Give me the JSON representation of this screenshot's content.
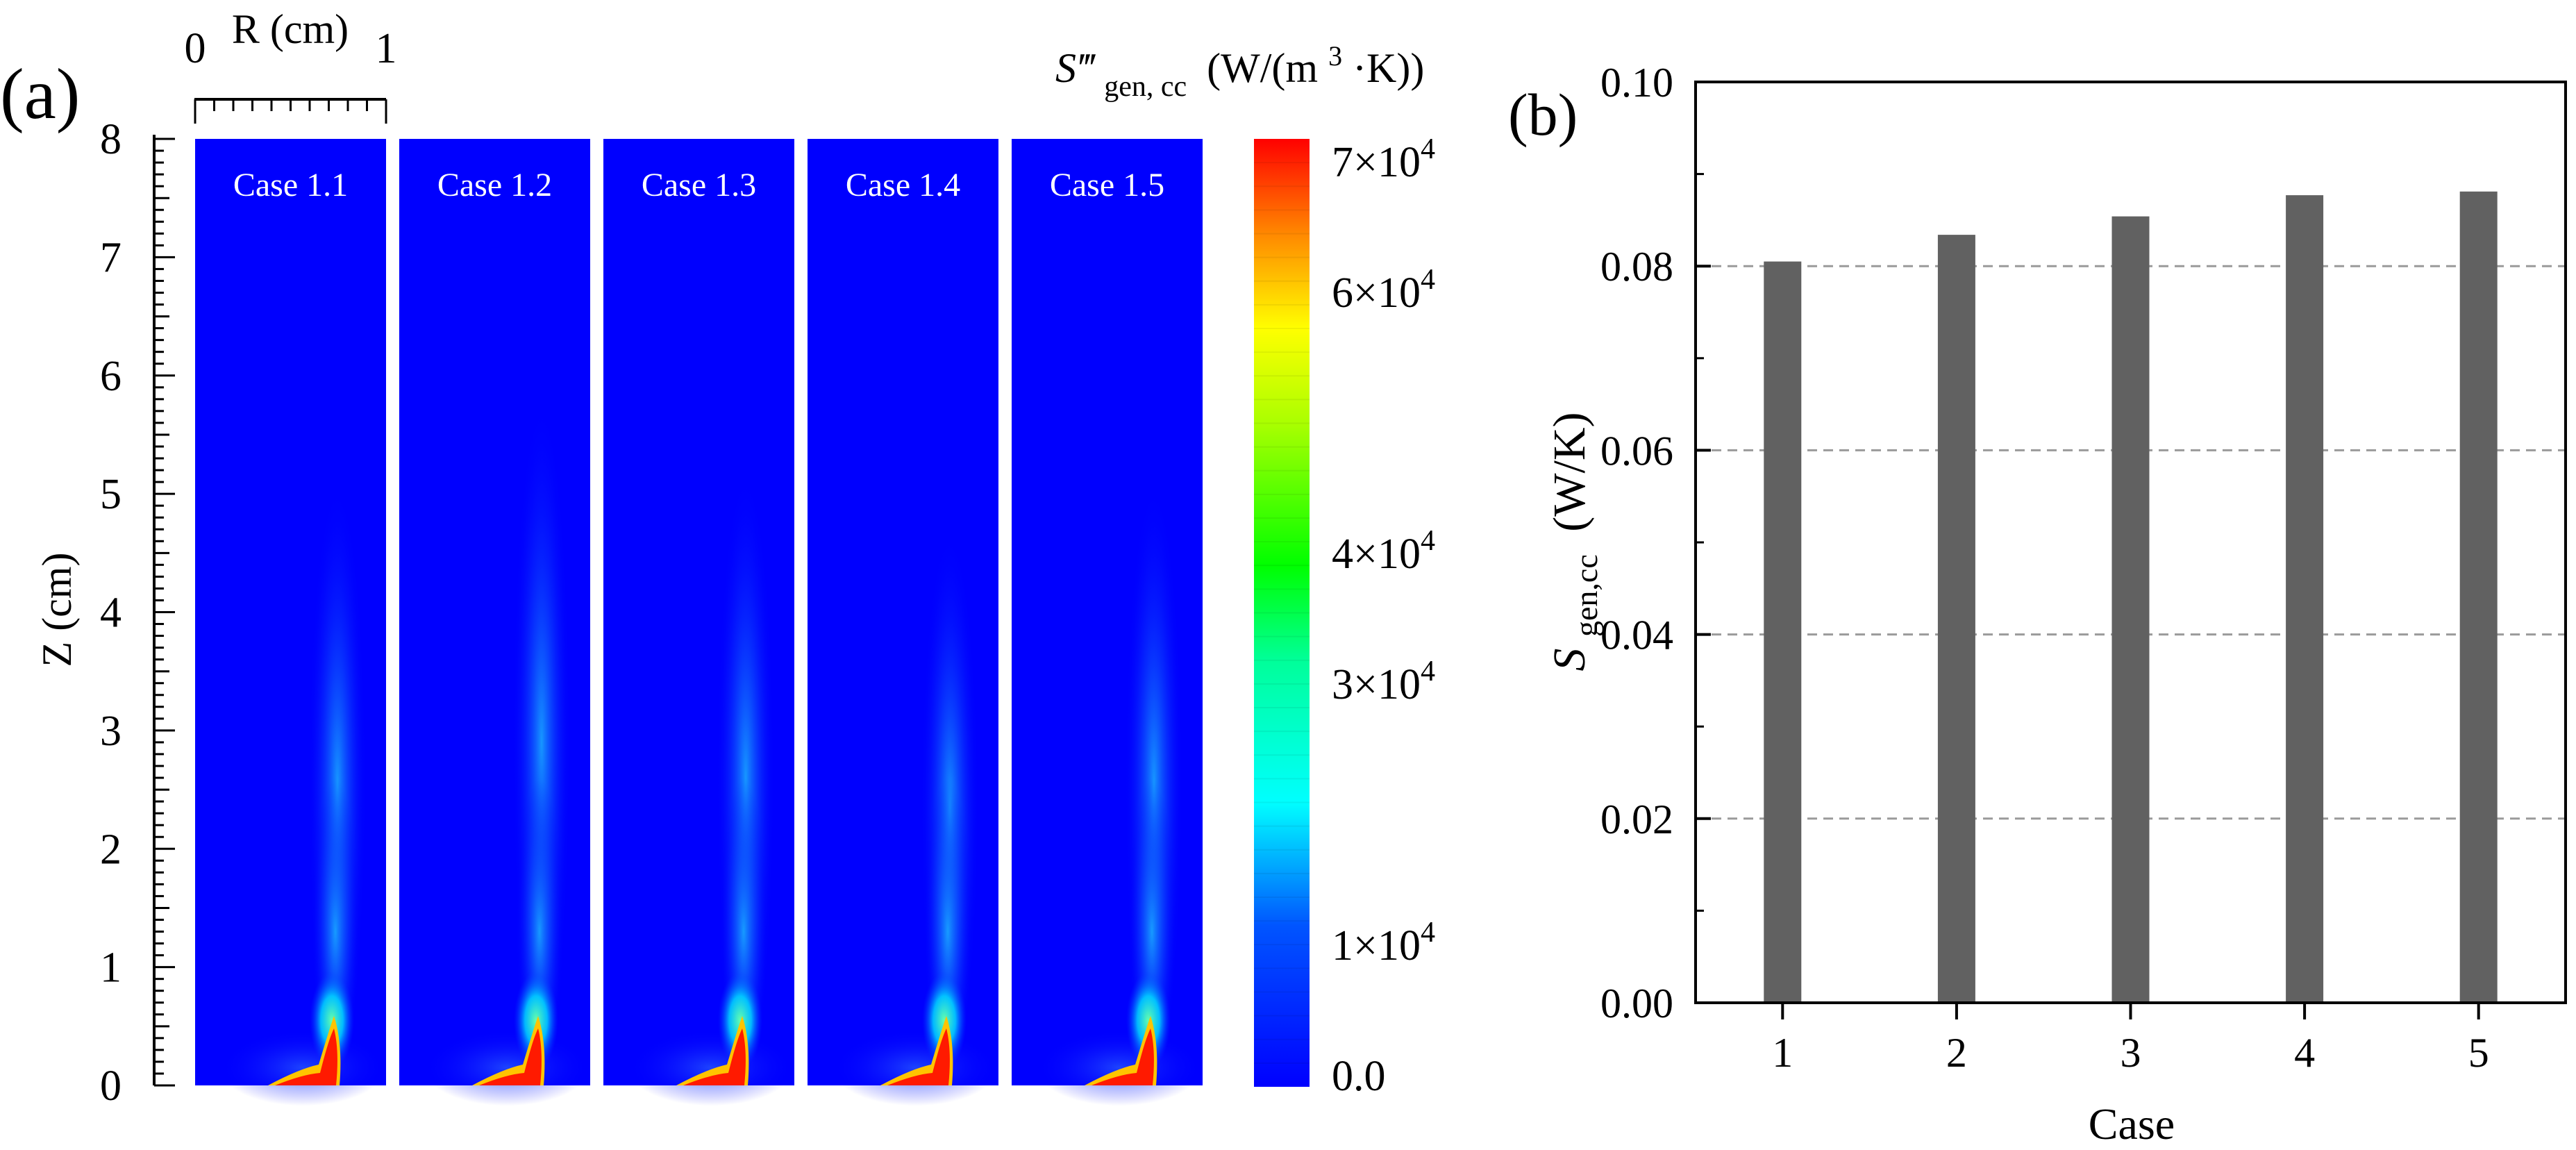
{
  "panel_a": {
    "label": "(a)",
    "r_axis": {
      "label": "R (cm)",
      "ticks": [
        "0",
        "1"
      ]
    },
    "z_axis": {
      "label": "Z (cm)",
      "ticks": [
        "0",
        "1",
        "2",
        "3",
        "4",
        "5",
        "6",
        "7",
        "8"
      ]
    },
    "colorbar": {
      "title_var": "S‴",
      "title_sub": "gen, cc",
      "title_unit_pre": "(W/(m",
      "title_unit_sup": "3",
      "title_unit_post": "·K))",
      "ticks": [
        {
          "value": 70000,
          "mant": "7×10",
          "exp": "4"
        },
        {
          "value": 60000,
          "mant": "6×10",
          "exp": "4"
        },
        {
          "value": 40000,
          "mant": "4×10",
          "exp": "4"
        },
        {
          "value": 30000,
          "mant": "3×10",
          "exp": "4"
        },
        {
          "value": 10000,
          "mant": "1×10",
          "exp": "4"
        },
        {
          "value": 0,
          "mant": "0.0",
          "exp": ""
        }
      ]
    },
    "cases": [
      {
        "label": "Case 1.1"
      },
      {
        "label": "Case 1.2"
      },
      {
        "label": "Case 1.3"
      },
      {
        "label": "Case 1.4"
      },
      {
        "label": "Case 1.5"
      }
    ]
  },
  "chart_data": {
    "type": "bar",
    "panel_label": "(b)",
    "categories": [
      "1",
      "2",
      "3",
      "4",
      "5"
    ],
    "values": [
      0.0805,
      0.0834,
      0.0854,
      0.0877,
      0.0881
    ],
    "xlabel": "Case",
    "ylabel_var": "S",
    "ylabel_sub": "gen,cc",
    "ylabel_unit": "(W/K)",
    "ylim": [
      0,
      0.1
    ],
    "yticks": [
      "0.00",
      "0.02",
      "0.04",
      "0.06",
      "0.08",
      "0.10"
    ],
    "grid": "horizontal dashed",
    "bar_color": "#616161"
  },
  "colors": {
    "field_background": "#0000fe",
    "bar": "#616161",
    "grid": "#9a9a9a"
  }
}
